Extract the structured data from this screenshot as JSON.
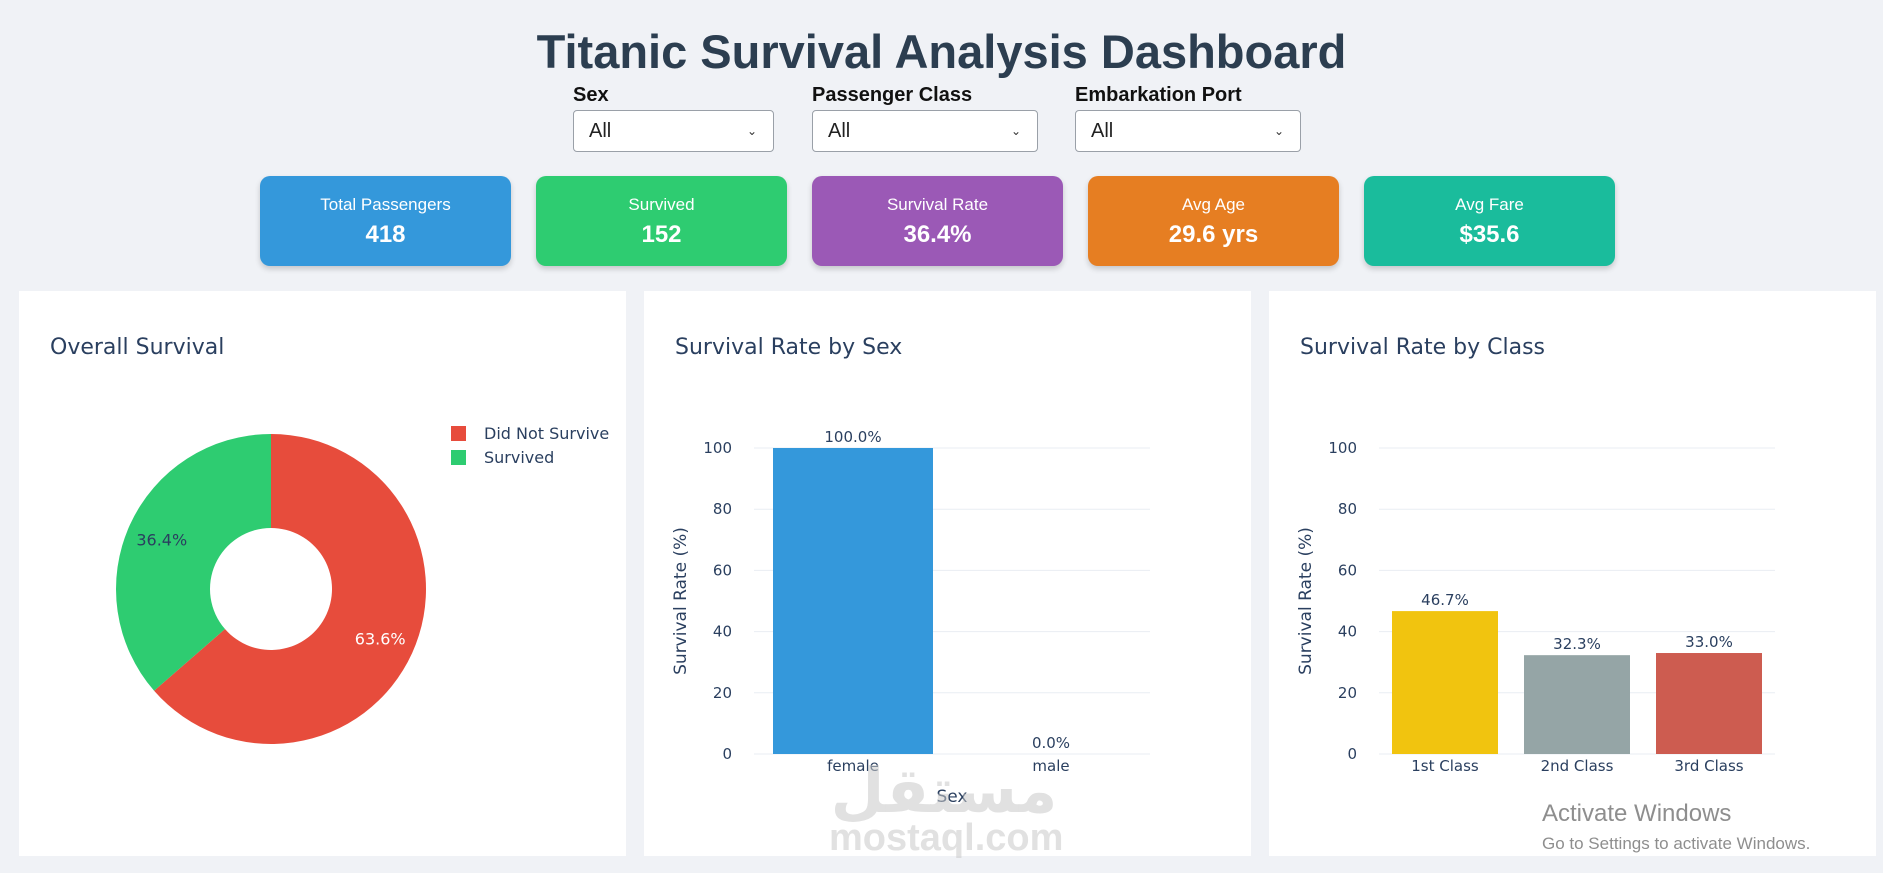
{
  "title": "Titanic Survival Analysis Dashboard",
  "filters": [
    {
      "label": "Sex",
      "value": "All"
    },
    {
      "label": "Passenger Class",
      "value": "All"
    },
    {
      "label": "Embarkation Port",
      "value": "All"
    }
  ],
  "kpis": [
    {
      "label": "Total Passengers",
      "value": "418",
      "color": "#3498db"
    },
    {
      "label": "Survived",
      "value": "152",
      "color": "#2ecc71"
    },
    {
      "label": "Survival Rate",
      "value": "36.4%",
      "color": "#9b59b6"
    },
    {
      "label": "Avg Age",
      "value": "29.6 yrs",
      "color": "#e67e22"
    },
    {
      "label": "Avg Fare",
      "value": "$35.6",
      "color": "#1abc9c"
    }
  ],
  "charts": {
    "survival": {
      "title": "Overall Survival"
    },
    "sex": {
      "title": "Survival Rate by Sex"
    },
    "class": {
      "title": "Survival Rate by Class"
    }
  },
  "chart_data": [
    {
      "type": "pie",
      "title": "Overall Survival",
      "hole": true,
      "labels": [
        "Did Not Survive",
        "Survived"
      ],
      "values": [
        63.6,
        36.4
      ],
      "text": [
        "63.6%",
        "36.4%"
      ],
      "colors": [
        "#e74c3c",
        "#2ecc71"
      ],
      "legend": "top-right"
    },
    {
      "type": "bar",
      "title": "Survival Rate by Sex",
      "categories": [
        "female",
        "male"
      ],
      "values": [
        100.0,
        0.0
      ],
      "text": [
        "100.0%",
        "0.0%"
      ],
      "colors": [
        "#3498db",
        "#e74c3c"
      ],
      "xlabel": "Sex",
      "ylabel": "Survival Rate (%)",
      "ylim": [
        0,
        100
      ],
      "yticks": [
        0,
        20,
        40,
        60,
        80,
        100
      ],
      "grid": true
    },
    {
      "type": "bar",
      "title": "Survival Rate by Class",
      "categories": [
        "1st Class",
        "2nd Class",
        "3rd Class"
      ],
      "values": [
        46.7,
        32.3,
        33.0
      ],
      "text": [
        "46.7%",
        "32.3%",
        "33.0%"
      ],
      "colors": [
        "#f1c40f",
        "#95a5a6",
        "#cd5c50"
      ],
      "xlabel": "",
      "ylabel": "Survival Rate (%)",
      "ylim": [
        0,
        100
      ],
      "yticks": [
        0,
        20,
        40,
        60,
        80,
        100
      ],
      "grid": true
    }
  ],
  "watermark": {
    "arabic": "مستقل",
    "latin": "mostaql.com"
  },
  "os_notice": {
    "title": "Activate Windows",
    "subtitle": "Go to Settings to activate Windows."
  }
}
